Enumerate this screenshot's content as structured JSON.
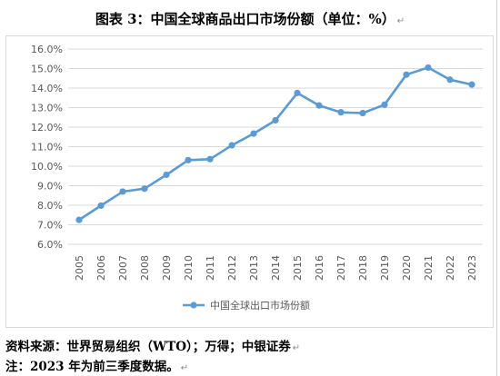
{
  "header": {
    "title": "图表 3：中国全球商品出口市场份额（单位：%）",
    "para_mark": "↵"
  },
  "chart_data": {
    "type": "line",
    "title": "",
    "xlabel": "",
    "ylabel": "",
    "categories": [
      "2005",
      "2006",
      "2007",
      "2008",
      "2009",
      "2010",
      "2011",
      "2012",
      "2013",
      "2014",
      "2015",
      "2016",
      "2017",
      "2018",
      "2019",
      "2020",
      "2021",
      "2022",
      "2023"
    ],
    "series": [
      {
        "name": "中国全球出口市场份额",
        "values": [
          7.25,
          7.98,
          8.7,
          8.85,
          9.56,
          10.31,
          10.36,
          11.07,
          11.67,
          12.35,
          13.75,
          13.11,
          12.76,
          12.72,
          13.15,
          14.69,
          15.05,
          14.43,
          14.18
        ],
        "color": "#5b9bd5"
      }
    ],
    "ylim": [
      6.0,
      16.0
    ],
    "y_ticks": [
      "6.0%",
      "7.0%",
      "8.0%",
      "9.0%",
      "10.0%",
      "11.0%",
      "12.0%",
      "13.0%",
      "14.0%",
      "15.0%",
      "16.0%"
    ],
    "grid": true,
    "legend_position": "bottom"
  },
  "footer": {
    "source": "资料来源：世界贸易组织（WTO）；万得；中银证券",
    "note": "注：2023 年为前三季度数据。",
    "para_mark": "↵"
  },
  "colors": {
    "grid": "#d9d9d9",
    "axis_text": "#595959",
    "line": "#5b9bd5"
  }
}
